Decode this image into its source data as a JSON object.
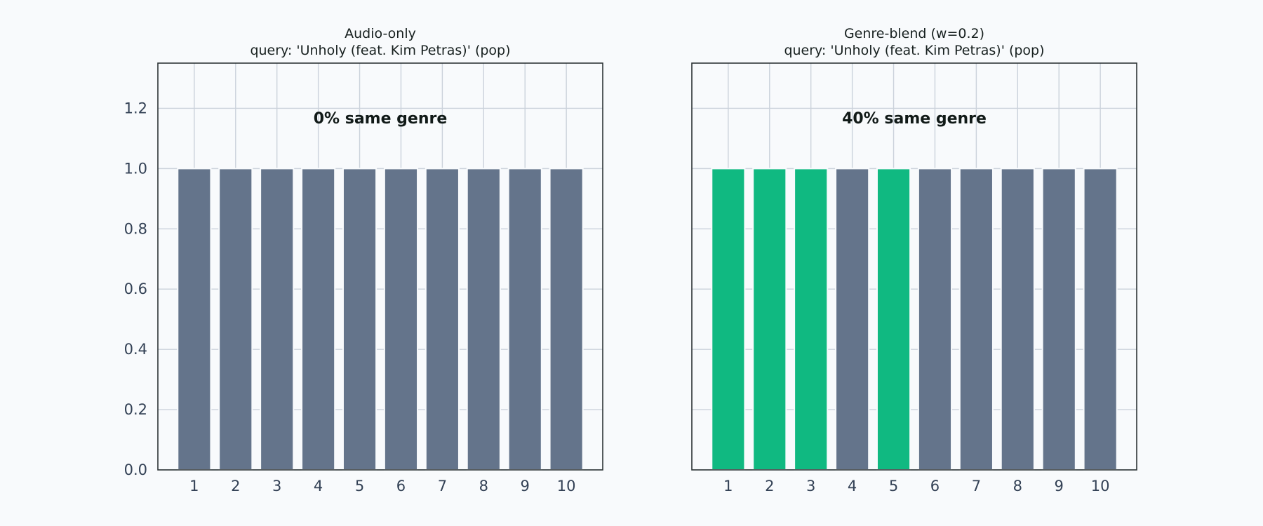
{
  "chart_data": [
    {
      "type": "bar",
      "title": "Audio-only",
      "subtitle": "query: 'Unholy (feat. Kim Petras)' (pop)",
      "annotation": "0% same genre",
      "categories": [
        "1",
        "2",
        "3",
        "4",
        "5",
        "6",
        "7",
        "8",
        "9",
        "10"
      ],
      "values": [
        1,
        1,
        1,
        1,
        1,
        1,
        1,
        1,
        1,
        1
      ],
      "same_genre": [
        false,
        false,
        false,
        false,
        false,
        false,
        false,
        false,
        false,
        false
      ],
      "yticks": [
        "0.0",
        "0.2",
        "0.4",
        "0.6",
        "0.8",
        "1.0",
        "1.2"
      ],
      "ylim": [
        0,
        1.35
      ],
      "xlabel": "",
      "ylabel": "",
      "grid": true
    },
    {
      "type": "bar",
      "title": "Genre-blend (w=0.2)",
      "subtitle": "query: 'Unholy (feat. Kim Petras)' (pop)",
      "annotation": "40% same genre",
      "categories": [
        "1",
        "2",
        "3",
        "4",
        "5",
        "6",
        "7",
        "8",
        "9",
        "10"
      ],
      "values": [
        1,
        1,
        1,
        1,
        1,
        1,
        1,
        1,
        1,
        1
      ],
      "same_genre": [
        true,
        true,
        true,
        false,
        true,
        false,
        false,
        false,
        false,
        false
      ],
      "yticks": [],
      "ylim": [
        0,
        1.35
      ],
      "xlabel": "",
      "ylabel": "",
      "grid": true
    }
  ],
  "colors": {
    "same_genre": "#10b981",
    "other_genre": "#64748b",
    "background": "#f8fafc"
  }
}
